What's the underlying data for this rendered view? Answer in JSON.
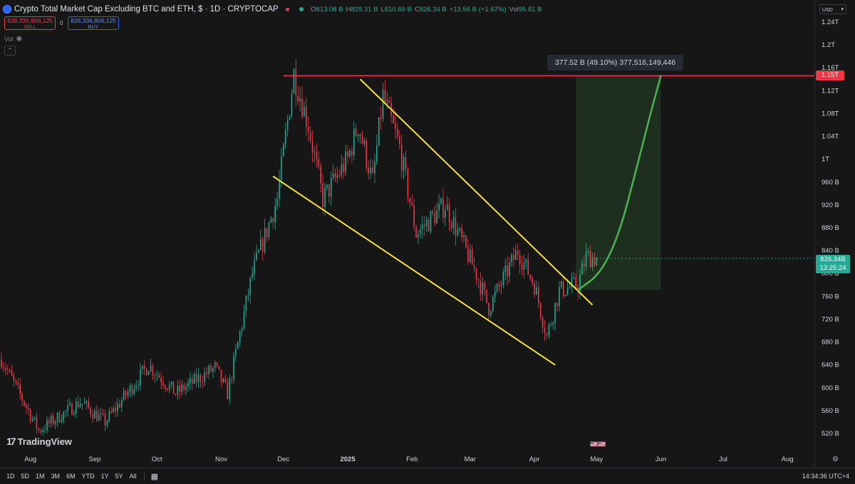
{
  "header": {
    "title": "Crypto Total Market Cap Excluding BTC and ETH, $ · 1D · CRYPTOCAP",
    "ohlc": [
      {
        "k": "O",
        "v": "813.08 B"
      },
      {
        "k": "H",
        "v": "829.31 B"
      },
      {
        "k": "L",
        "v": "810.69 B"
      },
      {
        "k": "C",
        "v": "826.34 B"
      }
    ],
    "change": "+13.56 B (+1.67%)",
    "volume_label": "Vol",
    "volume_value": "95.81 B"
  },
  "trade": {
    "sell_price": "826,336,806,125",
    "sell_label": "SELL",
    "spread": "0",
    "buy_price": "826,336,806,125",
    "buy_label": "BUY"
  },
  "vol_indicator": "Vol",
  "currency": "USD",
  "price_axis_labels": [
    {
      "t": "1.24T",
      "v": 1240
    },
    {
      "t": "1.2T",
      "v": 1200
    },
    {
      "t": "1.16T",
      "v": 1160
    },
    {
      "t": "1.12T",
      "v": 1120
    },
    {
      "t": "1.08T",
      "v": 1080
    },
    {
      "t": "1.04T",
      "v": 1040
    },
    {
      "t": "1T",
      "v": 1000
    },
    {
      "t": "960 B",
      "v": 960
    },
    {
      "t": "920 B",
      "v": 920
    },
    {
      "t": "880 B",
      "v": 880
    },
    {
      "t": "840 B",
      "v": 840
    },
    {
      "t": "800 B",
      "v": 800
    },
    {
      "t": "760 B",
      "v": 760
    },
    {
      "t": "720 B",
      "v": 720
    },
    {
      "t": "680 B",
      "v": 680
    },
    {
      "t": "640 B",
      "v": 640
    },
    {
      "t": "600 B",
      "v": 600
    },
    {
      "t": "560 B",
      "v": 560
    },
    {
      "t": "520 B",
      "v": 520
    }
  ],
  "time_axis_labels": [
    {
      "t": "Aug",
      "d": "2024-08-01"
    },
    {
      "t": "Sep",
      "d": "2024-09-01"
    },
    {
      "t": "Oct",
      "d": "2024-10-01"
    },
    {
      "t": "Nov",
      "d": "2024-11-01"
    },
    {
      "t": "Dec",
      "d": "2024-12-01"
    },
    {
      "t": "2025",
      "d": "2025-01-01"
    },
    {
      "t": "Feb",
      "d": "2025-02-01"
    },
    {
      "t": "Mar",
      "d": "2025-03-01"
    },
    {
      "t": "Apr",
      "d": "2025-04-01"
    },
    {
      "t": "May",
      "d": "2025-05-01"
    },
    {
      "t": "Jun",
      "d": "2025-06-01"
    },
    {
      "t": "Jul",
      "d": "2025-07-01"
    },
    {
      "t": "Aug",
      "d": "2025-08-01"
    }
  ],
  "chart_data": {
    "type": "candlestick",
    "y_unit": "billion USD",
    "x_range": [
      "2024-07-18",
      "2025-08-13"
    ],
    "y_range": [
      500,
      1250
    ],
    "anchors": [
      {
        "d": "2024-07-18",
        "v": 650
      },
      {
        "d": "2024-08-05",
        "v": 525
      },
      {
        "d": "2024-08-25",
        "v": 575
      },
      {
        "d": "2024-09-06",
        "v": 540
      },
      {
        "d": "2024-09-27",
        "v": 640
      },
      {
        "d": "2024-10-10",
        "v": 590
      },
      {
        "d": "2024-10-29",
        "v": 635
      },
      {
        "d": "2024-11-04",
        "v": 590
      },
      {
        "d": "2024-11-16",
        "v": 800
      },
      {
        "d": "2024-11-28",
        "v": 930
      },
      {
        "d": "2024-12-06",
        "v": 1150
      },
      {
        "d": "2024-12-13",
        "v": 1060
      },
      {
        "d": "2024-12-20",
        "v": 930
      },
      {
        "d": "2025-01-01",
        "v": 1000
      },
      {
        "d": "2025-01-06",
        "v": 1060
      },
      {
        "d": "2025-01-13",
        "v": 960
      },
      {
        "d": "2025-01-18",
        "v": 1110
      },
      {
        "d": "2025-01-26",
        "v": 1020
      },
      {
        "d": "2025-02-03",
        "v": 870
      },
      {
        "d": "2025-02-17",
        "v": 920
      },
      {
        "d": "2025-03-04",
        "v": 800
      },
      {
        "d": "2025-03-10",
        "v": 740
      },
      {
        "d": "2025-03-24",
        "v": 840
      },
      {
        "d": "2025-04-01",
        "v": 780
      },
      {
        "d": "2025-04-07",
        "v": 690
      },
      {
        "d": "2025-04-13",
        "v": 770
      },
      {
        "d": "2025-04-22",
        "v": 780
      },
      {
        "d": "2025-04-26",
        "v": 830
      },
      {
        "d": "2025-05-01",
        "v": 826
      }
    ],
    "last_price": 826.34,
    "resistance_level": 1146,
    "trendlines": [
      {
        "name": "upper",
        "from": {
          "d": "2025-01-07",
          "v": 1140
        },
        "to": {
          "d": "2025-04-29",
          "v": 745
        }
      },
      {
        "name": "lower",
        "from": {
          "d": "2024-11-26",
          "v": 970
        },
        "to": {
          "d": "2025-04-11",
          "v": 640
        }
      }
    ],
    "projection_box": {
      "from": {
        "d": "2025-04-21",
        "v": 771
      },
      "to": {
        "d": "2025-06-01",
        "v": 1146
      }
    },
    "projection_curve": [
      {
        "d": "2025-04-22",
        "v": 771
      },
      {
        "d": "2025-05-03",
        "v": 800
      },
      {
        "d": "2025-05-12",
        "v": 870
      },
      {
        "d": "2025-05-20",
        "v": 980
      },
      {
        "d": "2025-05-27",
        "v": 1080
      },
      {
        "d": "2025-06-01",
        "v": 1146
      }
    ]
  },
  "price_tags": {
    "resistance": "1.15T",
    "last_price": "826.34B",
    "countdown": "13:25:24"
  },
  "measure_label": "377.52 B (49.10%) 377,516,149,446",
  "branding": "TradingView",
  "bottom_bar": {
    "ranges": [
      "1D",
      "5D",
      "1M",
      "3M",
      "6M",
      "YTD",
      "1Y",
      "5Y",
      "All"
    ],
    "time": "14:34:36 UTC+4"
  },
  "colors": {
    "up": "#22ab94",
    "down": "#f23645",
    "trendline": "#f5e23c",
    "projection": "#4caf50",
    "resistance": "#f23645"
  },
  "icons": [
    "eye-icon",
    "calendar-range-icon",
    "settings-icon",
    "flag-event-icon"
  ]
}
